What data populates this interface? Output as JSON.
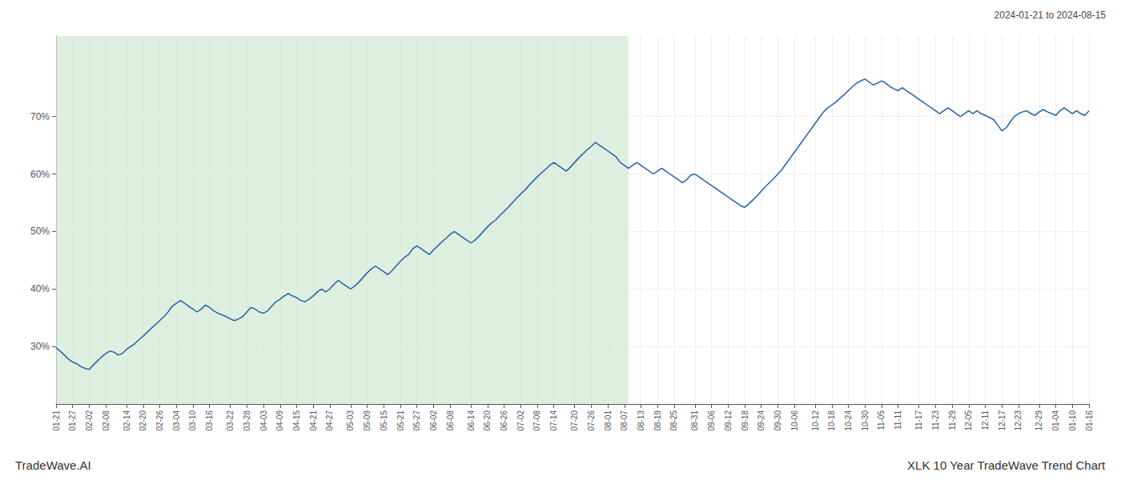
{
  "chart_data": {
    "type": "line",
    "title": "XLK 10 Year TradeWave Trend Chart",
    "subtitle": "2024-01-21 to 2024-08-15",
    "annotations": [
      "TradeWave.AI"
    ],
    "color": "#2362a8",
    "ylim": [
      20,
      84
    ],
    "yticks": [
      {
        "value": 30,
        "label": "30%"
      },
      {
        "value": 40,
        "label": "40%"
      },
      {
        "value": 50,
        "label": "50%"
      },
      {
        "value": 60,
        "label": "60%"
      },
      {
        "value": 70,
        "label": "70%"
      }
    ],
    "grid": true,
    "shaded_region": {
      "from": 0,
      "to": 138,
      "color": "#d4ead4"
    },
    "categories": [
      "01-21",
      null,
      null,
      null,
      "01-27",
      null,
      null,
      null,
      "02-02",
      null,
      null,
      null,
      "02-08",
      null,
      null,
      null,
      null,
      "02-14",
      null,
      null,
      null,
      "02-20",
      null,
      null,
      null,
      "02-26",
      null,
      null,
      null,
      "03-04",
      null,
      null,
      null,
      "03-10",
      null,
      null,
      null,
      "03-16",
      null,
      null,
      null,
      null,
      "03-22",
      null,
      null,
      null,
      "03-28",
      null,
      null,
      null,
      "04-03",
      null,
      null,
      null,
      "04-09",
      null,
      null,
      null,
      "04-15",
      null,
      null,
      null,
      "04-21",
      null,
      null,
      null,
      "04-27",
      null,
      null,
      null,
      null,
      "05-03",
      null,
      null,
      null,
      "05-09",
      null,
      null,
      null,
      "05-15",
      null,
      null,
      null,
      "05-21",
      null,
      null,
      null,
      "05-27",
      null,
      null,
      null,
      "06-02",
      null,
      null,
      null,
      "06-08",
      null,
      null,
      null,
      null,
      "06-14",
      null,
      null,
      null,
      "06-20",
      null,
      null,
      null,
      "06-26",
      null,
      null,
      null,
      "07-02",
      null,
      null,
      null,
      "07-08",
      null,
      null,
      null,
      "07-14",
      null,
      null,
      null,
      null,
      "07-20",
      null,
      null,
      null,
      "07-26",
      null,
      null,
      null,
      "08-01",
      null,
      null,
      null,
      "08-07",
      null,
      null,
      null,
      "08-13",
      null,
      null,
      null,
      "08-19",
      null,
      null,
      null,
      "08-25",
      null,
      null,
      null,
      null,
      "08-31",
      null,
      null,
      null,
      "09-06",
      null,
      null,
      null,
      "09-12",
      null,
      null,
      null,
      "09-18",
      null,
      null,
      null,
      "09-24",
      null,
      null,
      null,
      "09-30",
      null,
      null,
      null,
      "10-06",
      null,
      null,
      null,
      null,
      "10-12",
      null,
      null,
      null,
      "10-18",
      null,
      null,
      null,
      "10-24",
      null,
      null,
      null,
      "10-30",
      null,
      null,
      null,
      "11-05",
      null,
      null,
      null,
      "11-11",
      null,
      null,
      null,
      null,
      "11-17",
      null,
      null,
      null,
      "11-23",
      null,
      null,
      null,
      "11-29",
      null,
      null,
      null,
      "12-05",
      null,
      null,
      null,
      "12-11",
      null,
      null,
      null,
      "12-17",
      null,
      null,
      null,
      "12-23",
      null,
      null,
      null,
      null,
      "12-29",
      null,
      null,
      null,
      "01-04",
      null,
      null,
      null,
      "01-10",
      null,
      null,
      null,
      "01-16"
    ],
    "values": [
      29.8,
      29.2,
      28.5,
      27.8,
      27.3,
      27.0,
      26.5,
      26.2,
      26.0,
      26.8,
      27.5,
      28.2,
      28.8,
      29.2,
      29.0,
      28.5,
      28.8,
      29.5,
      30.0,
      30.5,
      31.2,
      31.8,
      32.5,
      33.2,
      33.8,
      34.5,
      35.2,
      36.0,
      37.0,
      37.5,
      38.0,
      37.5,
      37.0,
      36.5,
      36.0,
      36.5,
      37.2,
      36.8,
      36.2,
      35.8,
      35.5,
      35.2,
      34.8,
      34.5,
      34.8,
      35.2,
      36.0,
      36.8,
      36.5,
      36.0,
      35.8,
      36.2,
      37.0,
      37.8,
      38.2,
      38.8,
      39.2,
      38.8,
      38.5,
      38.0,
      37.8,
      38.2,
      38.8,
      39.5,
      40.0,
      39.5,
      40.0,
      40.8,
      41.5,
      41.0,
      40.5,
      40.0,
      40.5,
      41.2,
      42.0,
      42.8,
      43.5,
      44.0,
      43.5,
      43.0,
      42.5,
      43.2,
      44.0,
      44.8,
      45.5,
      46.0,
      47.0,
      47.5,
      47.0,
      46.5,
      46.0,
      46.8,
      47.5,
      48.2,
      48.8,
      49.5,
      50.0,
      49.5,
      49.0,
      48.5,
      48.0,
      48.5,
      49.2,
      50.0,
      50.8,
      51.5,
      52.0,
      52.8,
      53.5,
      54.2,
      55.0,
      55.8,
      56.5,
      57.2,
      58.0,
      58.8,
      59.5,
      60.2,
      60.8,
      61.5,
      62.0,
      61.5,
      61.0,
      60.5,
      61.2,
      62.0,
      62.8,
      63.5,
      64.2,
      64.8,
      65.5,
      65.0,
      64.5,
      64.0,
      63.5,
      63.0,
      62.0,
      61.5,
      61.0,
      61.5,
      62.0,
      61.5,
      61.0,
      60.5,
      60.0,
      60.5,
      61.0,
      60.5,
      60.0,
      59.5,
      59.0,
      58.5,
      59.0,
      59.8,
      60.0,
      59.5,
      59.0,
      58.5,
      58.0,
      57.5,
      57.0,
      56.5,
      56.0,
      55.5,
      55.0,
      54.5,
      54.2,
      54.8,
      55.5,
      56.2,
      57.0,
      57.8,
      58.5,
      59.2,
      60.0,
      60.8,
      61.8,
      62.8,
      63.8,
      64.8,
      65.8,
      66.8,
      67.8,
      68.8,
      69.8,
      70.8,
      71.5,
      72.0,
      72.5,
      73.2,
      73.8,
      74.5,
      75.2,
      75.8,
      76.2,
      76.5,
      76.0,
      75.5,
      75.8,
      76.2,
      75.8,
      75.2,
      74.8,
      74.5,
      75.0,
      74.5,
      74.0,
      73.5,
      73.0,
      72.5,
      72.0,
      71.5,
      71.0,
      70.5,
      71.0,
      71.5,
      71.0,
      70.5,
      70.0,
      70.5,
      71.0,
      70.5,
      71.0,
      70.5,
      70.2,
      69.8,
      69.5,
      68.5,
      67.5,
      68.0,
      69.0,
      70.0,
      70.5,
      70.8,
      71.0,
      70.5,
      70.2,
      70.8,
      71.2,
      70.8,
      70.5,
      70.2,
      71.0,
      71.5,
      71.0,
      70.5,
      71.0,
      70.5,
      70.2,
      71.0
    ]
  }
}
